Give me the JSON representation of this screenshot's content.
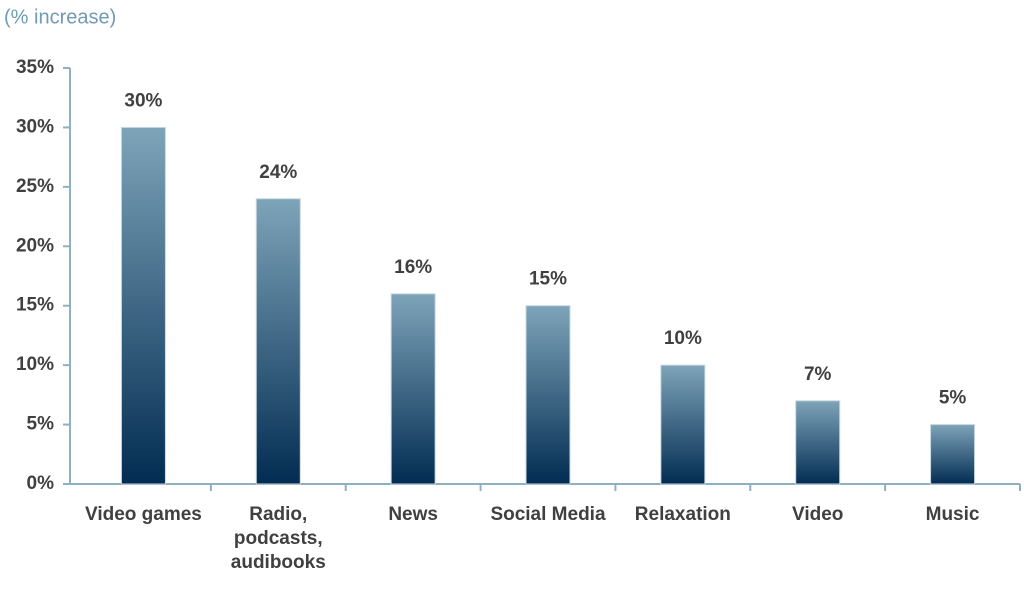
{
  "chart_data": {
    "type": "bar",
    "y_label": "(% increase)",
    "categories": [
      "Video games",
      "Radio, podcasts, audibooks",
      "News",
      "Social Media",
      "Relaxation",
      "Video",
      "Music"
    ],
    "values": [
      30,
      24,
      16,
      15,
      10,
      7,
      5
    ],
    "value_labels": [
      "30%",
      "24%",
      "16%",
      "15%",
      "10%",
      "7%",
      "5%"
    ],
    "gradient": [
      "#7ea4b9",
      "#022c52"
    ],
    "ylim": [
      0,
      35
    ],
    "yticks": [
      {
        "value": 0,
        "label": "0%"
      },
      {
        "value": 5,
        "label": "5%"
      },
      {
        "value": 10,
        "label": "10%"
      },
      {
        "value": 15,
        "label": "15%"
      },
      {
        "value": 20,
        "label": "20%"
      },
      {
        "value": 25,
        "label": "25%"
      },
      {
        "value": 30,
        "label": "30%"
      },
      {
        "value": 35,
        "label": "35%"
      }
    ],
    "grid": false
  }
}
